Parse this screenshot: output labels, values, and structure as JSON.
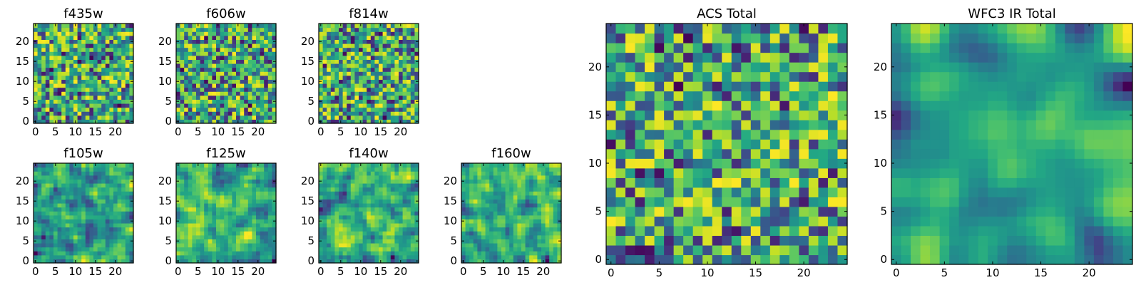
{
  "chart_data": [
    {
      "type": "heatmap",
      "title": "f435w",
      "x_ticks": [
        "0",
        "5",
        "10",
        "15",
        "20"
      ],
      "y_ticks": [
        "0",
        "5",
        "10",
        "15",
        "20"
      ],
      "xlim": [
        0,
        25
      ],
      "ylim": [
        0,
        25
      ],
      "grid_size": 25,
      "colormap": "viridis",
      "seed": 11,
      "smooth": 0
    },
    {
      "type": "heatmap",
      "title": "f606w",
      "x_ticks": [
        "0",
        "5",
        "10",
        "15",
        "20"
      ],
      "y_ticks": [
        "0",
        "5",
        "10",
        "15",
        "20"
      ],
      "xlim": [
        0,
        25
      ],
      "ylim": [
        0,
        25
      ],
      "grid_size": 25,
      "colormap": "viridis",
      "seed": 23,
      "smooth": 0
    },
    {
      "type": "heatmap",
      "title": "f814w",
      "x_ticks": [
        "0",
        "5",
        "10",
        "15",
        "20"
      ],
      "y_ticks": [
        "0",
        "5",
        "10",
        "15",
        "20"
      ],
      "xlim": [
        0,
        25
      ],
      "ylim": [
        0,
        25
      ],
      "grid_size": 25,
      "colormap": "viridis",
      "seed": 37,
      "smooth": 0
    },
    {
      "type": "heatmap",
      "title": "f105w",
      "x_ticks": [
        "0",
        "5",
        "10",
        "15",
        "20"
      ],
      "y_ticks": [
        "0",
        "5",
        "10",
        "15",
        "20"
      ],
      "xlim": [
        0,
        25
      ],
      "ylim": [
        0,
        25
      ],
      "grid_size": 25,
      "colormap": "viridis",
      "seed": 41,
      "smooth": 1
    },
    {
      "type": "heatmap",
      "title": "f125w",
      "x_ticks": [
        "0",
        "5",
        "10",
        "15",
        "20"
      ],
      "y_ticks": [
        "0",
        "5",
        "10",
        "15",
        "20"
      ],
      "xlim": [
        0,
        25
      ],
      "ylim": [
        0,
        25
      ],
      "grid_size": 25,
      "colormap": "viridis",
      "seed": 53,
      "smooth": 1
    },
    {
      "type": "heatmap",
      "title": "f140w",
      "x_ticks": [
        "0",
        "5",
        "10",
        "15",
        "20"
      ],
      "y_ticks": [
        "0",
        "5",
        "10",
        "15",
        "20"
      ],
      "xlim": [
        0,
        25
      ],
      "ylim": [
        0,
        25
      ],
      "grid_size": 25,
      "colormap": "viridis",
      "seed": 67,
      "smooth": 1
    },
    {
      "type": "heatmap",
      "title": "f160w",
      "x_ticks": [
        "0",
        "5",
        "10",
        "15",
        "20"
      ],
      "y_ticks": [
        "0",
        "5",
        "10",
        "15",
        "20"
      ],
      "xlim": [
        0,
        25
      ],
      "ylim": [
        0,
        25
      ],
      "grid_size": 25,
      "colormap": "viridis",
      "seed": 79,
      "smooth": 1
    },
    {
      "type": "heatmap",
      "title": "ACS Total",
      "x_ticks": [
        "0",
        "5",
        "10",
        "15",
        "20"
      ],
      "y_ticks": [
        "0",
        "5",
        "10",
        "15",
        "20"
      ],
      "xlim": [
        0,
        25
      ],
      "ylim": [
        0,
        25
      ],
      "grid_size": 25,
      "colormap": "viridis",
      "seed": 97,
      "smooth": 0
    },
    {
      "type": "heatmap",
      "title": "WFC3 IR Total",
      "x_ticks": [
        "0",
        "5",
        "10",
        "15",
        "20"
      ],
      "y_ticks": [
        "0",
        "5",
        "10",
        "15",
        "20"
      ],
      "xlim": [
        0,
        25
      ],
      "ylim": [
        0,
        25
      ],
      "grid_size": 25,
      "colormap": "viridis",
      "seed": 113,
      "smooth": 3
    }
  ]
}
